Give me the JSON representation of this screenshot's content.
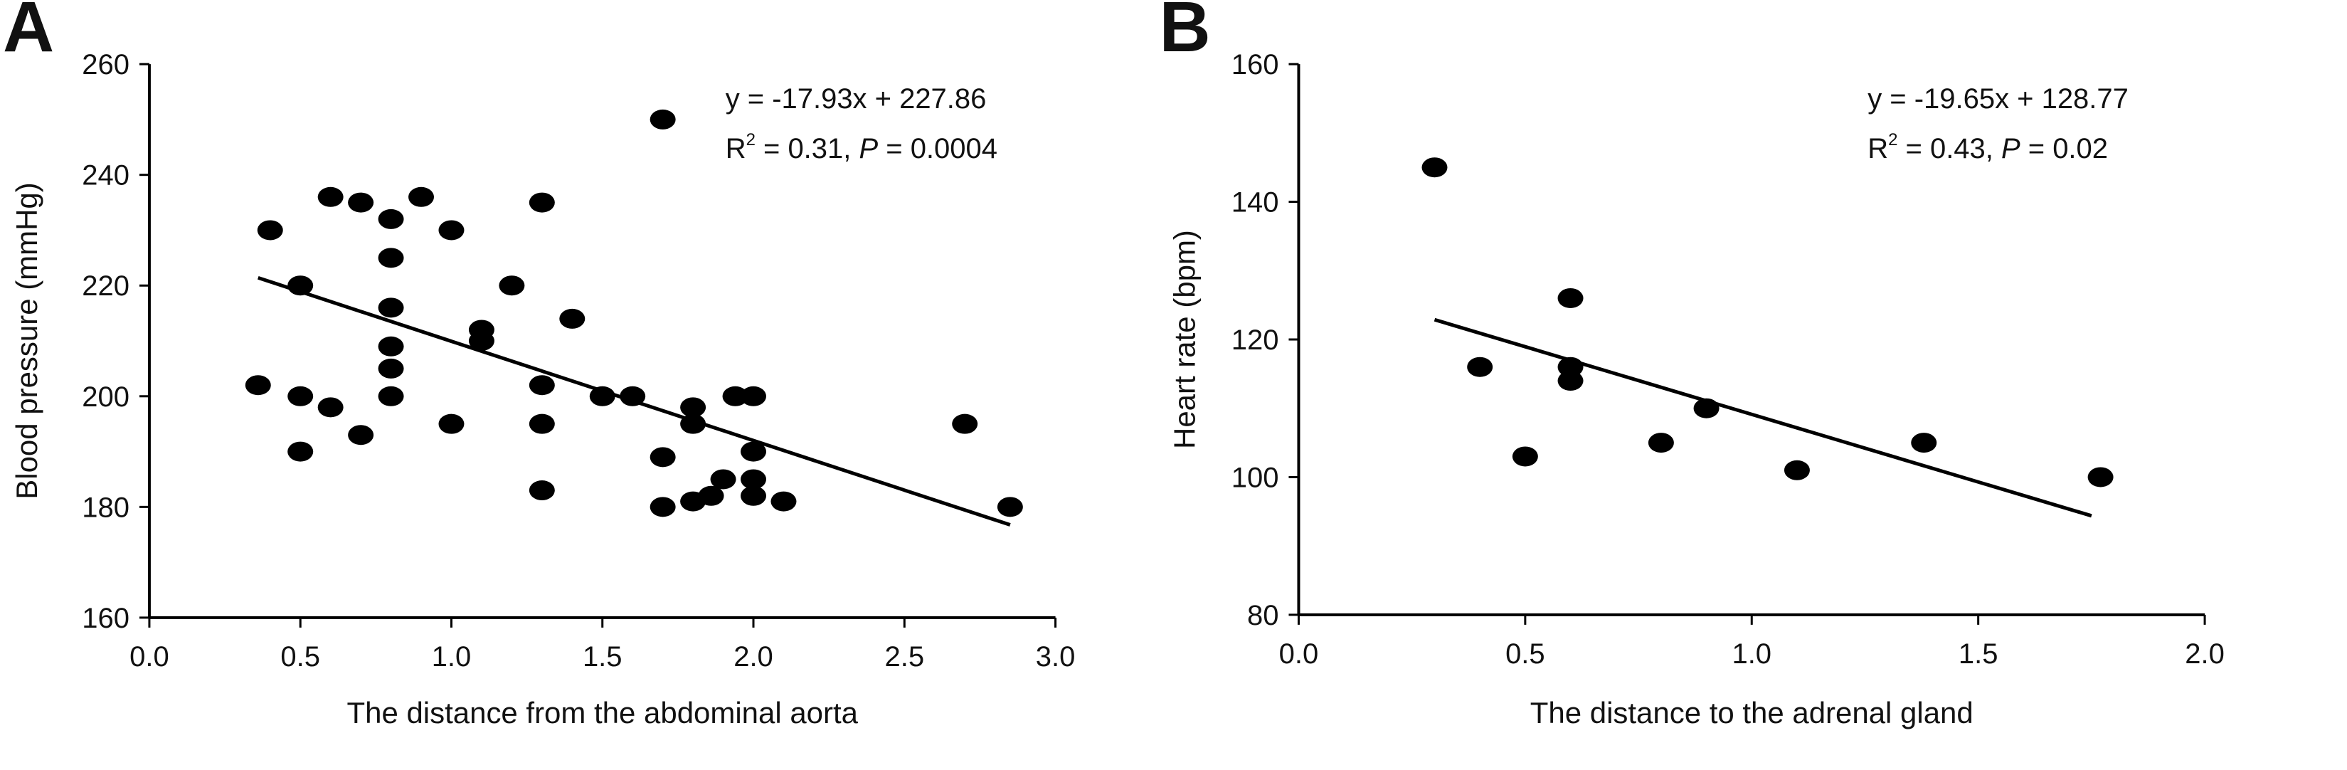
{
  "chart_data": [
    {
      "type": "scatter",
      "panel_label": "A",
      "title": "",
      "xlabel": "The distance from the abdominal aorta",
      "ylabel": "Blood pressure (mmHg)",
      "xlim": [
        0,
        3
      ],
      "ylim": [
        160,
        260
      ],
      "xticks": [
        0,
        0.5,
        1,
        1.5,
        2,
        2.5,
        3
      ],
      "yticks": [
        160,
        180,
        200,
        220,
        240,
        260
      ],
      "xtick_labels": [
        "0.0",
        "0.5",
        "1.0",
        "1.5",
        "2.0",
        "2.5",
        "3.0"
      ],
      "ytick_labels": [
        "160",
        "180",
        "200",
        "220",
        "240",
        "260"
      ],
      "equation": "y = -17.93x + 227.86",
      "stats": {
        "r2_prefix": "R",
        "r2_sup": "2",
        "r2_value": " = 0.31, ",
        "p_symbol": "P",
        "p_value": " = 0.0004"
      },
      "fit": {
        "slope": -17.93,
        "intercept": 227.86,
        "x_range": [
          0.36,
          2.85
        ]
      },
      "grid": false,
      "legend": "none",
      "color": "#000000",
      "points": [
        {
          "x": 0.36,
          "y": 202
        },
        {
          "x": 0.4,
          "y": 230
        },
        {
          "x": 0.5,
          "y": 220
        },
        {
          "x": 0.5,
          "y": 200
        },
        {
          "x": 0.5,
          "y": 190
        },
        {
          "x": 0.6,
          "y": 236
        },
        {
          "x": 0.6,
          "y": 198
        },
        {
          "x": 0.7,
          "y": 235
        },
        {
          "x": 0.7,
          "y": 193
        },
        {
          "x": 0.8,
          "y": 232
        },
        {
          "x": 0.8,
          "y": 225
        },
        {
          "x": 0.8,
          "y": 216
        },
        {
          "x": 0.8,
          "y": 209
        },
        {
          "x": 0.8,
          "y": 205
        },
        {
          "x": 0.8,
          "y": 200
        },
        {
          "x": 0.9,
          "y": 236
        },
        {
          "x": 1.0,
          "y": 230
        },
        {
          "x": 1.0,
          "y": 195
        },
        {
          "x": 1.1,
          "y": 212
        },
        {
          "x": 1.1,
          "y": 210
        },
        {
          "x": 1.2,
          "y": 220
        },
        {
          "x": 1.3,
          "y": 235
        },
        {
          "x": 1.3,
          "y": 202
        },
        {
          "x": 1.3,
          "y": 195
        },
        {
          "x": 1.3,
          "y": 183
        },
        {
          "x": 1.4,
          "y": 214
        },
        {
          "x": 1.5,
          "y": 200
        },
        {
          "x": 1.6,
          "y": 200
        },
        {
          "x": 1.7,
          "y": 250
        },
        {
          "x": 1.7,
          "y": 189
        },
        {
          "x": 1.7,
          "y": 180
        },
        {
          "x": 1.8,
          "y": 198
        },
        {
          "x": 1.8,
          "y": 195
        },
        {
          "x": 1.8,
          "y": 181
        },
        {
          "x": 1.86,
          "y": 182
        },
        {
          "x": 1.9,
          "y": 185
        },
        {
          "x": 1.94,
          "y": 200
        },
        {
          "x": 2.0,
          "y": 200
        },
        {
          "x": 2.0,
          "y": 190
        },
        {
          "x": 2.0,
          "y": 185
        },
        {
          "x": 2.0,
          "y": 182
        },
        {
          "x": 2.1,
          "y": 181
        },
        {
          "x": 2.7,
          "y": 195
        },
        {
          "x": 2.85,
          "y": 180
        }
      ]
    },
    {
      "type": "scatter",
      "panel_label": "B",
      "title": "",
      "xlabel": "The distance to the adrenal gland",
      "ylabel": "Heart rate (bpm)",
      "xlim": [
        0,
        2
      ],
      "ylim": [
        80,
        160
      ],
      "xticks": [
        0,
        0.5,
        1,
        1.5,
        2
      ],
      "yticks": [
        80,
        100,
        120,
        140,
        160
      ],
      "xtick_labels": [
        "0.0",
        "0.5",
        "1.0",
        "1.5",
        "2.0"
      ],
      "ytick_labels": [
        "80",
        "100",
        "120",
        "140",
        "160"
      ],
      "equation": "y = -19.65x + 128.77",
      "stats": {
        "r2_prefix": "R",
        "r2_sup": "2",
        "r2_value": " = 0.43, ",
        "p_symbol": "P",
        "p_value": " = 0.02"
      },
      "fit": {
        "slope": -19.65,
        "intercept": 128.77,
        "x_range": [
          0.3,
          1.75
        ]
      },
      "grid": false,
      "legend": "none",
      "color": "#000000",
      "points": [
        {
          "x": 0.3,
          "y": 145
        },
        {
          "x": 0.4,
          "y": 116
        },
        {
          "x": 0.5,
          "y": 103
        },
        {
          "x": 0.6,
          "y": 126
        },
        {
          "x": 0.6,
          "y": 116
        },
        {
          "x": 0.6,
          "y": 114
        },
        {
          "x": 0.8,
          "y": 105
        },
        {
          "x": 0.9,
          "y": 110
        },
        {
          "x": 1.1,
          "y": 101
        },
        {
          "x": 1.38,
          "y": 105
        },
        {
          "x": 1.77,
          "y": 100
        }
      ]
    }
  ]
}
